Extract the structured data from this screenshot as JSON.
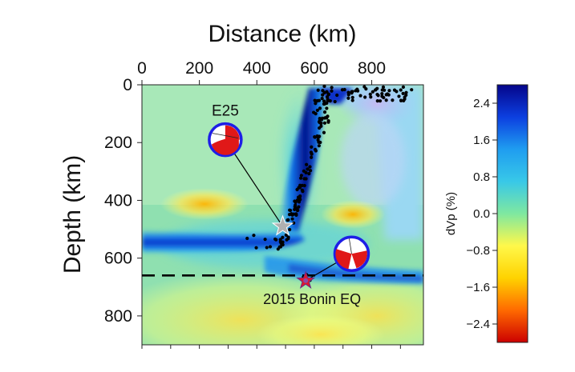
{
  "chart_data": {
    "type": "heatmap",
    "xlabel": "Distance (km)",
    "ylabel": "Depth (km)",
    "xlim": [
      0,
      980
    ],
    "ylim": [
      0,
      900
    ],
    "x_ticks": [
      0,
      200,
      400,
      600,
      800
    ],
    "y_ticks": [
      0,
      200,
      400,
      600,
      800
    ],
    "x_tick_labels": [
      "0",
      "200",
      "400",
      "600",
      "800"
    ],
    "y_tick_labels": [
      "0",
      "200",
      "400",
      "600",
      "800"
    ],
    "colorbar": {
      "label": "dVp (%)",
      "range": [
        -2.8,
        2.8
      ],
      "ticks": [
        2.4,
        1.6,
        0.8,
        0.0,
        -0.8,
        -1.6,
        -2.4
      ],
      "tick_labels": [
        "2.4",
        "1.6",
        "0.8",
        "0.0",
        "−0.8",
        "−1.6",
        "−2.4"
      ],
      "colors": [
        "#cc0000",
        "#ff6a00",
        "#ffd200",
        "#fff84a",
        "#7fe8a0",
        "#38c8e8",
        "#1f9df0",
        "#0c3fe0",
        "#05058a"
      ]
    },
    "discontinuity_depth_km": 660,
    "annotations": [
      {
        "label": "E25",
        "event_x_km": 490,
        "event_depth_km": 490,
        "beachball_x_km": 290,
        "beachball_depth_km": 190,
        "marker": "gray-star"
      },
      {
        "label": "2015 Bonin EQ",
        "event_x_km": 570,
        "event_depth_km": 678,
        "beachball_x_km": 730,
        "beachball_depth_km": 585,
        "marker": "red-star"
      }
    ],
    "slab_anomaly_peak_dVp": 2.8,
    "low_velocity_anomaly_dVp": -1.6
  }
}
